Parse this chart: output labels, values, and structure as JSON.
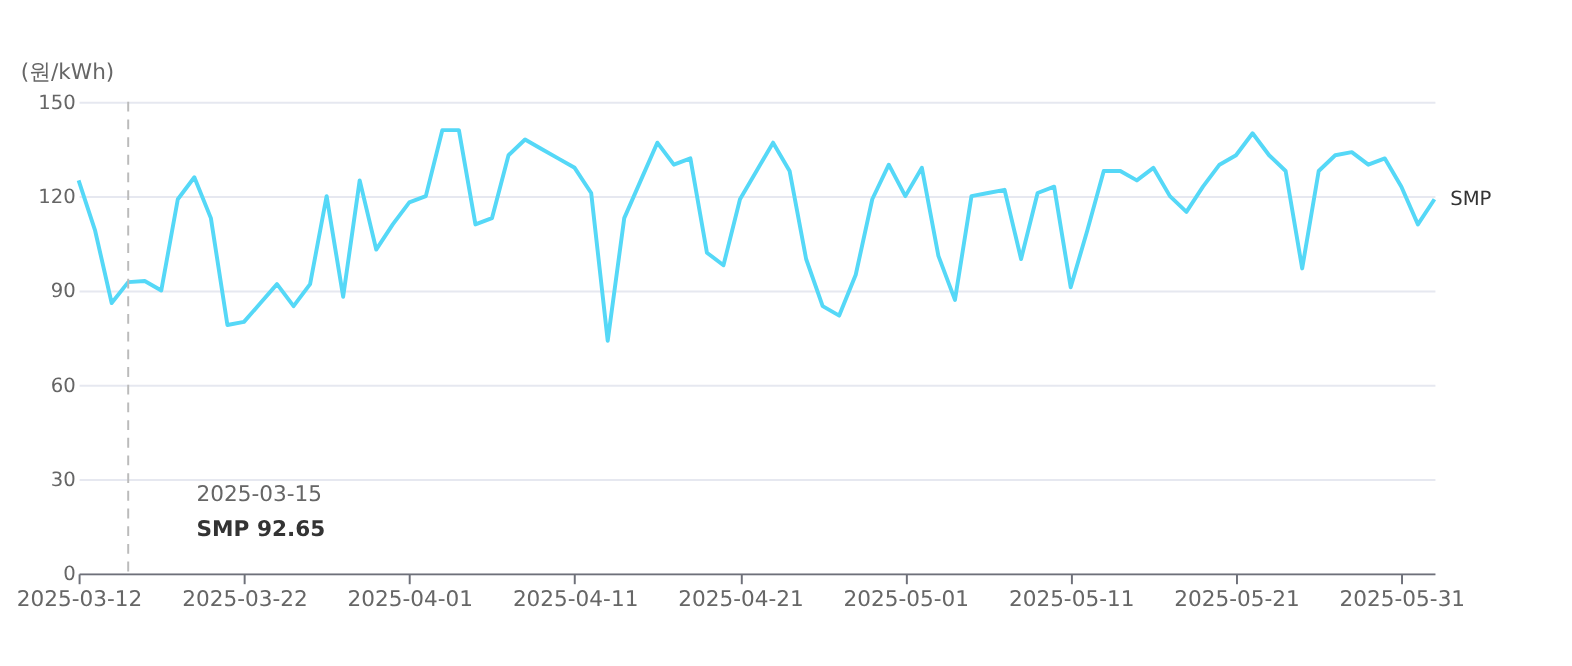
{
  "chart_data": {
    "type": "line",
    "ylabel": "(원/kWh)",
    "x": [
      "2025-03-12",
      "2025-03-13",
      "2025-03-14",
      "2025-03-15",
      "2025-03-16",
      "2025-03-17",
      "2025-03-18",
      "2025-03-19",
      "2025-03-20",
      "2025-03-21",
      "2025-03-22",
      "2025-03-23",
      "2025-03-24",
      "2025-03-25",
      "2025-03-26",
      "2025-03-27",
      "2025-03-28",
      "2025-03-29",
      "2025-03-30",
      "2025-03-31",
      "2025-04-01",
      "2025-04-02",
      "2025-04-03",
      "2025-04-04",
      "2025-04-05",
      "2025-04-06",
      "2025-04-07",
      "2025-04-08",
      "2025-04-09",
      "2025-04-10",
      "2025-04-11",
      "2025-04-12",
      "2025-04-13",
      "2025-04-14",
      "2025-04-15",
      "2025-04-16",
      "2025-04-17",
      "2025-04-18",
      "2025-04-19",
      "2025-04-20",
      "2025-04-21",
      "2025-04-22",
      "2025-04-23",
      "2025-04-24",
      "2025-04-25",
      "2025-04-26",
      "2025-04-27",
      "2025-04-28",
      "2025-04-29",
      "2025-04-30",
      "2025-05-01",
      "2025-05-02",
      "2025-05-03",
      "2025-05-04",
      "2025-05-05",
      "2025-05-06",
      "2025-05-07",
      "2025-05-08",
      "2025-05-09",
      "2025-05-10",
      "2025-05-11",
      "2025-05-12",
      "2025-05-13",
      "2025-05-14",
      "2025-05-15",
      "2025-05-16",
      "2025-05-17",
      "2025-05-18",
      "2025-05-19",
      "2025-05-20",
      "2025-05-21",
      "2025-05-22",
      "2025-05-23",
      "2025-05-24",
      "2025-05-25",
      "2025-05-26",
      "2025-05-27",
      "2025-05-28",
      "2025-05-29",
      "2025-05-30",
      "2025-05-31",
      "2025-06-01",
      "2025-06-02"
    ],
    "series": [
      {
        "name": "SMP",
        "color": "#55d8f7",
        "values": [
          125,
          109,
          86,
          92.65,
          93,
          90,
          119,
          126,
          113,
          79,
          80,
          86,
          92,
          85,
          92,
          120,
          88,
          125,
          103,
          111,
          118,
          120,
          141,
          141,
          111,
          113,
          133,
          138,
          135,
          132,
          129,
          121,
          74,
          113,
          125,
          137,
          130,
          132,
          102,
          98,
          119,
          128,
          137,
          128,
          100,
          85,
          82,
          95,
          119,
          130,
          120,
          129,
          101,
          87,
          120,
          121,
          122,
          100,
          121,
          123,
          91,
          109,
          128,
          128,
          125,
          129,
          120,
          115,
          123,
          130,
          133,
          140,
          133,
          128,
          97,
          128,
          133,
          134,
          130,
          132,
          123,
          111,
          119
        ]
      }
    ],
    "xlim": [
      "2025-03-12",
      "2025-06-02"
    ],
    "xticks": [
      {
        "value": "2025-03-12",
        "label": "2025-03-12"
      },
      {
        "value": "2025-03-22",
        "label": "2025-03-22"
      },
      {
        "value": "2025-04-01",
        "label": "2025-04-01"
      },
      {
        "value": "2025-04-11",
        "label": "2025-04-11"
      },
      {
        "value": "2025-04-21",
        "label": "2025-04-21"
      },
      {
        "value": "2025-05-01",
        "label": "2025-05-01"
      },
      {
        "value": "2025-05-11",
        "label": "2025-05-11"
      },
      {
        "value": "2025-05-21",
        "label": "2025-05-21"
      },
      {
        "value": "2025-05-31",
        "label": "2025-05-31"
      }
    ],
    "ylim": [
      0,
      150
    ],
    "yticks": [
      0,
      30,
      60,
      90,
      120,
      150
    ],
    "grid": "y",
    "legend": false,
    "marker": "none",
    "line_style": "solid",
    "ref_lines": [
      {
        "axis": "x",
        "value": "2025-03-15",
        "color": "#bbbbbb",
        "line_style": "dashed"
      }
    ],
    "annotations": [
      "2025-03-15",
      "SMP 92.65"
    ]
  }
}
